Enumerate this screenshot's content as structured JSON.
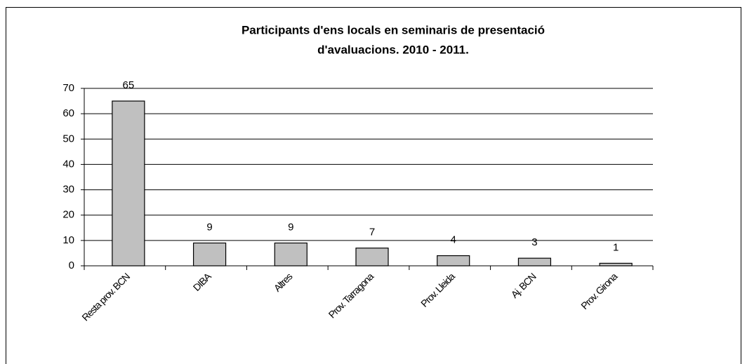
{
  "chart_data": {
    "type": "bar",
    "title": [
      "Participants d'ens locals en seminaris de presentació",
      "d'avaluacions. 2010 - 2011."
    ],
    "categories": [
      "Resta prov. BCN",
      "DIBA",
      "Altres",
      "Prov. Tarragona",
      "Prov. Lleida",
      "Aj. BCN",
      "Prov. Girona"
    ],
    "values": [
      65,
      9,
      9,
      7,
      4,
      3,
      1
    ],
    "color": "#c0c0c0",
    "ylim": [
      0,
      70
    ],
    "yticks": [
      0,
      10,
      20,
      30,
      40,
      50,
      60,
      70
    ],
    "grid": true
  }
}
